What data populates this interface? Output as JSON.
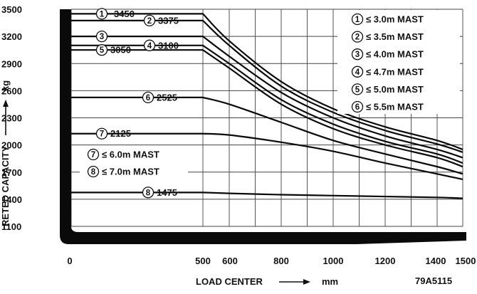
{
  "chart_data": {
    "type": "line",
    "xlabel": "LOAD CENTER",
    "xunit": "mm",
    "ylabel": "RETED CAPACITY",
    "yunit": "kg",
    "code": "79A5115",
    "x_ticks": [
      "0",
      "500",
      "600",
      "800",
      "1000",
      "1200",
      "1400",
      "1500"
    ],
    "y_ticks": [
      "1100",
      "1400",
      "1700",
      "2000",
      "2300",
      "2600",
      "2900",
      "3200",
      "3500"
    ],
    "ylim": [
      1100,
      3500
    ],
    "grid": true,
    "series": [
      {
        "name": "1",
        "x": [
          0,
          500,
          600,
          800,
          1000,
          1200,
          1400,
          1500
        ],
        "values": [
          3450,
          3450,
          3150,
          2700,
          2400,
          2200,
          2050,
          1950
        ],
        "label": "3450"
      },
      {
        "name": "2",
        "x": [
          0,
          500,
          600,
          800,
          1000,
          1200,
          1400,
          1500
        ],
        "values": [
          3375,
          3375,
          3100,
          2650,
          2360,
          2160,
          2010,
          1920
        ],
        "label": "3375"
      },
      {
        "name": "3",
        "x": [
          0,
          500,
          600,
          800,
          1000,
          1200,
          1400,
          1500
        ],
        "values": [
          3200,
          3200,
          2980,
          2580,
          2300,
          2100,
          1950,
          1860
        ],
        "label": ""
      },
      {
        "name": "4",
        "x": [
          0,
          500,
          600,
          800,
          1000,
          1200,
          1400,
          1500
        ],
        "values": [
          3100,
          3100,
          2900,
          2500,
          2230,
          2040,
          1900,
          1800
        ],
        "label": "3100"
      },
      {
        "name": "5",
        "x": [
          0,
          500,
          600,
          800,
          1000,
          1200,
          1400,
          1500
        ],
        "values": [
          3050,
          3050,
          2850,
          2450,
          2180,
          2000,
          1860,
          1760
        ],
        "label": "3050"
      },
      {
        "name": "6",
        "x": [
          0,
          500,
          600,
          800,
          1000,
          1200,
          1400,
          1500
        ],
        "values": [
          2525,
          2525,
          2450,
          2250,
          2050,
          1900,
          1760,
          1680
        ],
        "label": "2525"
      },
      {
        "name": "7",
        "x": [
          0,
          500,
          600,
          800,
          1000,
          1200,
          1400,
          1500
        ],
        "values": [
          2125,
          2125,
          2110,
          2030,
          1930,
          1800,
          1680,
          1620
        ],
        "label": "2125"
      },
      {
        "name": "8",
        "x": [
          0,
          500,
          600,
          800,
          1000,
          1200,
          1400,
          1500
        ],
        "values": [
          1475,
          1475,
          1465,
          1450,
          1440,
          1430,
          1420,
          1410
        ],
        "label": "1475"
      }
    ],
    "legend_top_right": [
      {
        "num": "1",
        "text": "≤ 3.0m MAST"
      },
      {
        "num": "2",
        "text": "≤ 3.5m MAST"
      },
      {
        "num": "3",
        "text": "≤ 4.0m MAST"
      },
      {
        "num": "4",
        "text": "≤ 4.7m MAST"
      },
      {
        "num": "5",
        "text": "≤ 5.0m MAST"
      },
      {
        "num": "6",
        "text": "≤ 5.5m MAST"
      }
    ],
    "legend_left": [
      {
        "num": "7",
        "text": "≤ 6.0m MAST"
      },
      {
        "num": "8",
        "text": "≤ 7.0m MAST"
      }
    ]
  }
}
